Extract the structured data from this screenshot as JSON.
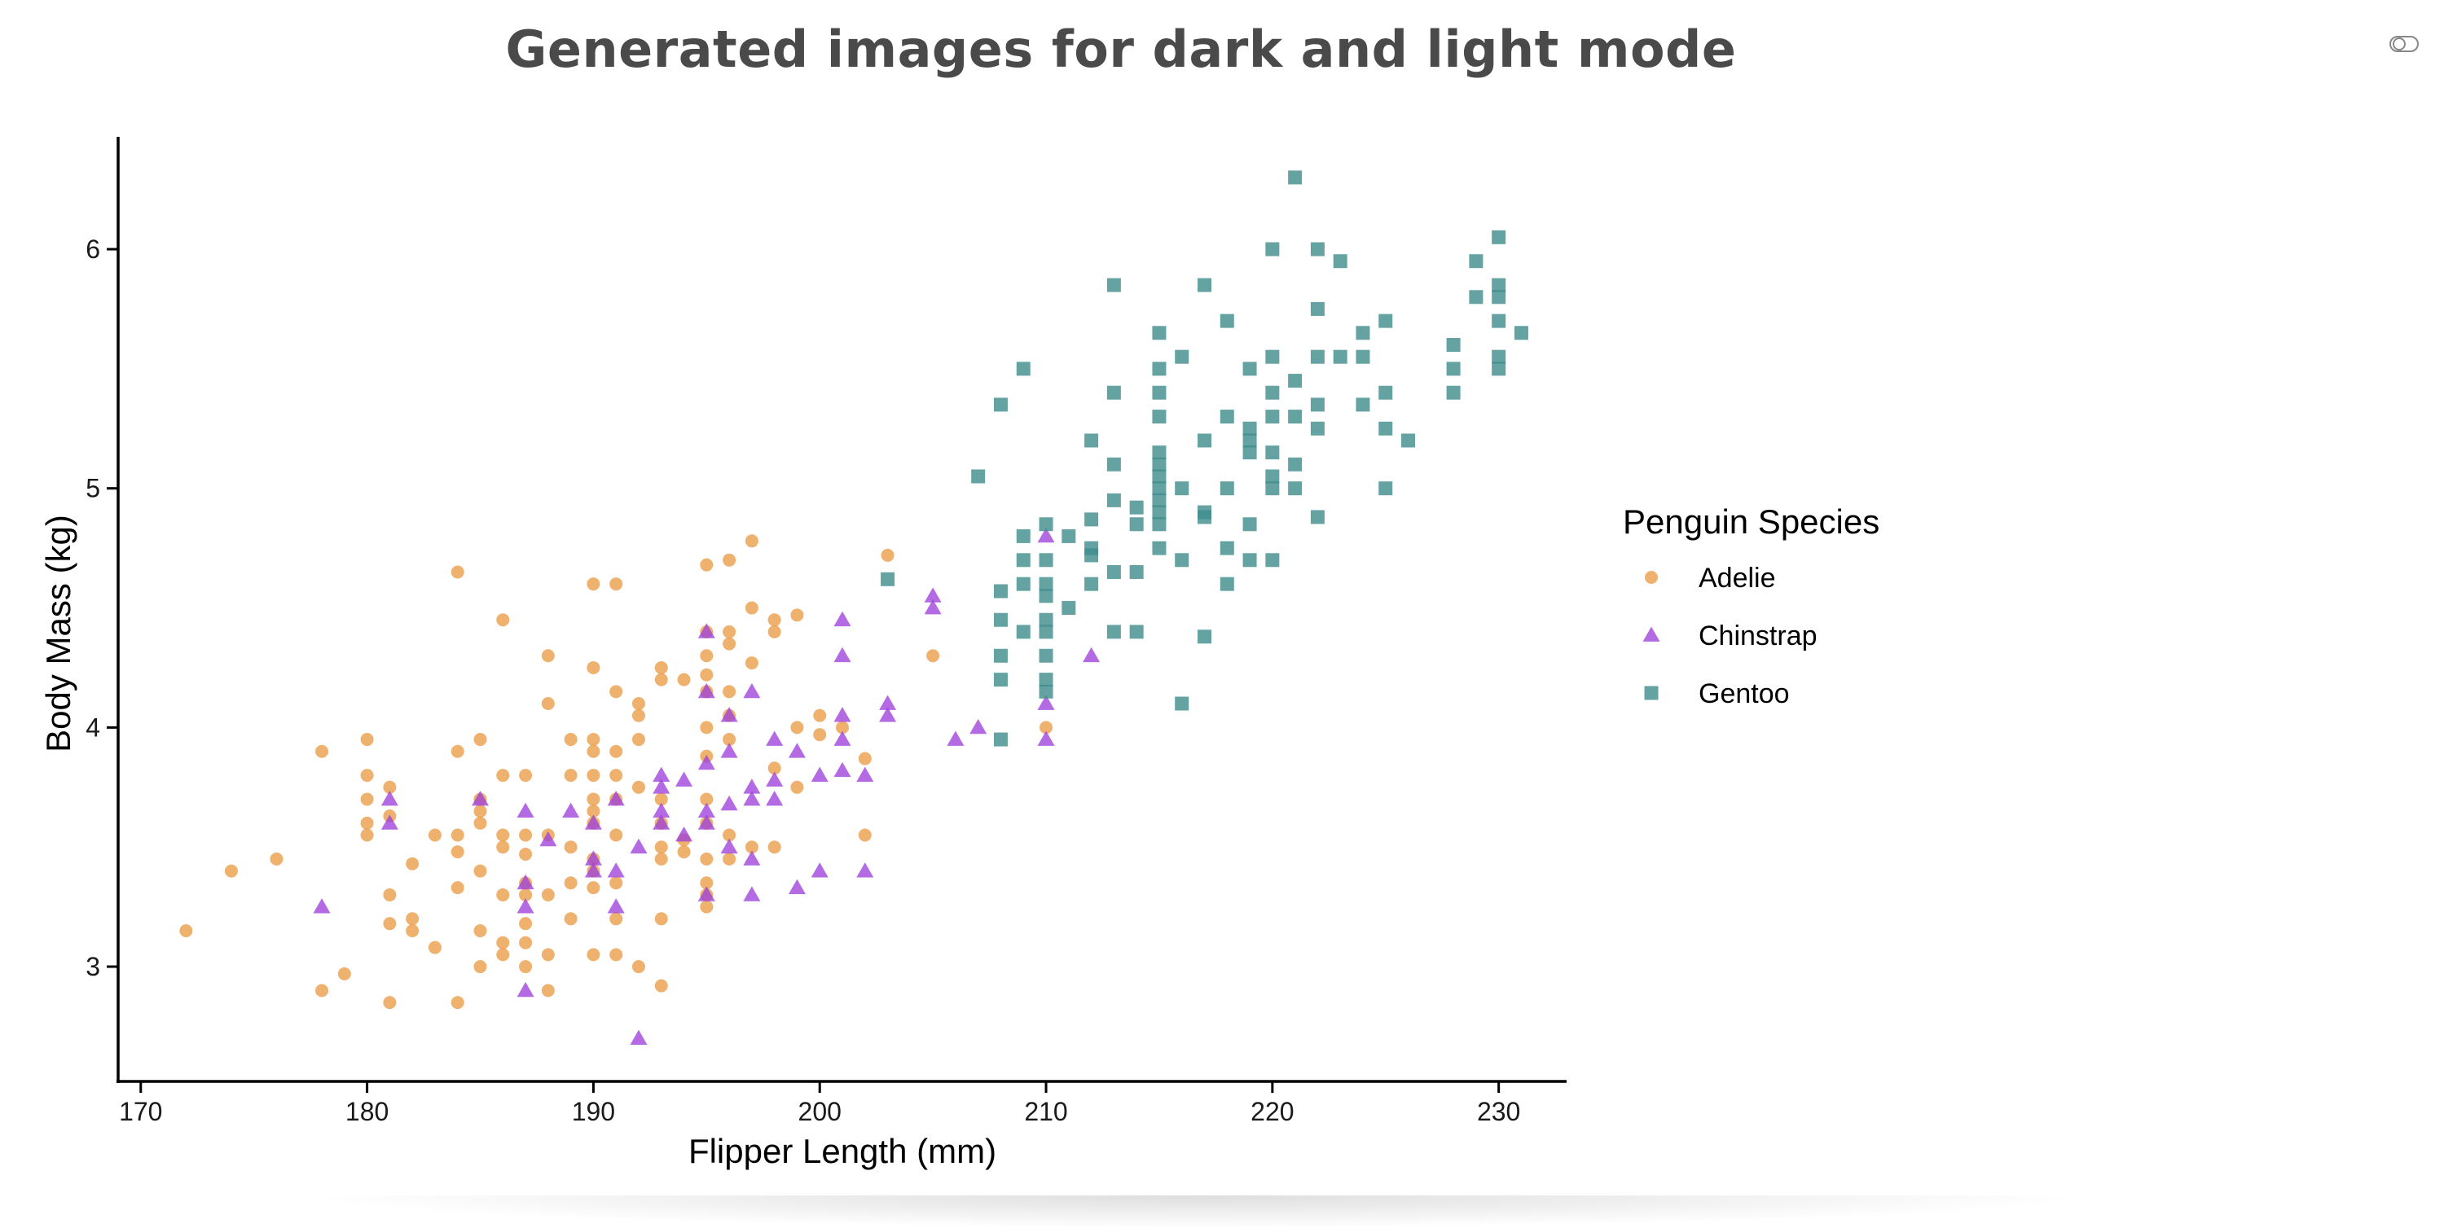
{
  "page": {
    "title": "Generated images for dark and light mode",
    "toggle_icon": "dark-light-toggle-icon"
  },
  "colors": {
    "Adelie": "#eb9b45",
    "Chinstrap": "#9d40db",
    "Gentoo": "#3f8c8c",
    "title": "#4a4a4a",
    "axis": "#000000"
  },
  "chart_data": {
    "type": "scatter",
    "xlabel": "Flipper Length (mm)",
    "ylabel": "Body Mass (kg)",
    "xlim": [
      169,
      233
    ],
    "ylim": [
      2.52,
      6.47
    ],
    "xticks": [
      170,
      180,
      190,
      200,
      210,
      220,
      230
    ],
    "yticks": [
      3,
      4,
      5,
      6
    ],
    "grid": false,
    "legend": {
      "title": "Penguin Species",
      "placement": "right"
    },
    "series": [
      {
        "name": "Adelie",
        "marker": "circle",
        "points": [
          [
            172,
            3.15
          ],
          [
            174,
            3.4
          ],
          [
            176,
            3.45
          ],
          [
            178,
            3.9
          ],
          [
            178,
            2.9
          ],
          [
            179,
            2.97
          ],
          [
            180,
            3.95
          ],
          [
            180,
            3.8
          ],
          [
            180,
            3.7
          ],
          [
            180,
            3.6
          ],
          [
            180,
            3.55
          ],
          [
            181,
            3.75
          ],
          [
            181,
            3.63
          ],
          [
            181,
            3.3
          ],
          [
            181,
            3.18
          ],
          [
            181,
            2.85
          ],
          [
            182,
            3.43
          ],
          [
            182,
            3.2
          ],
          [
            182,
            3.15
          ],
          [
            183,
            3.55
          ],
          [
            183,
            3.08
          ],
          [
            184,
            4.65
          ],
          [
            184,
            3.9
          ],
          [
            184,
            3.55
          ],
          [
            184,
            3.48
          ],
          [
            184,
            3.33
          ],
          [
            184,
            2.85
          ],
          [
            185,
            3.95
          ],
          [
            185,
            3.7
          ],
          [
            185,
            3.65
          ],
          [
            185,
            3.6
          ],
          [
            185,
            3.4
          ],
          [
            185,
            3.15
          ],
          [
            185,
            3.0
          ],
          [
            186,
            4.45
          ],
          [
            186,
            3.8
          ],
          [
            186,
            3.55
          ],
          [
            186,
            3.5
          ],
          [
            186,
            3.3
          ],
          [
            186,
            3.1
          ],
          [
            186,
            3.05
          ],
          [
            187,
            3.8
          ],
          [
            187,
            3.55
          ],
          [
            187,
            3.47
          ],
          [
            187,
            3.35
          ],
          [
            187,
            3.3
          ],
          [
            187,
            3.18
          ],
          [
            187,
            3.1
          ],
          [
            187,
            3.0
          ],
          [
            188,
            4.3
          ],
          [
            188,
            4.1
          ],
          [
            188,
            3.55
          ],
          [
            188,
            3.3
          ],
          [
            188,
            3.05
          ],
          [
            188,
            2.9
          ],
          [
            189,
            3.95
          ],
          [
            189,
            3.8
          ],
          [
            189,
            3.5
          ],
          [
            189,
            3.35
          ],
          [
            189,
            3.2
          ],
          [
            190,
            4.6
          ],
          [
            190,
            4.25
          ],
          [
            190,
            3.95
          ],
          [
            190,
            3.9
          ],
          [
            190,
            3.8
          ],
          [
            190,
            3.7
          ],
          [
            190,
            3.65
          ],
          [
            190,
            3.6
          ],
          [
            190,
            3.45
          ],
          [
            190,
            3.4
          ],
          [
            190,
            3.33
          ],
          [
            190,
            3.05
          ],
          [
            191,
            4.6
          ],
          [
            191,
            4.15
          ],
          [
            191,
            3.9
          ],
          [
            191,
            3.8
          ],
          [
            191,
            3.7
          ],
          [
            191,
            3.55
          ],
          [
            191,
            3.35
          ],
          [
            191,
            3.2
          ],
          [
            191,
            3.05
          ],
          [
            192,
            4.1
          ],
          [
            192,
            4.05
          ],
          [
            192,
            3.95
          ],
          [
            192,
            3.75
          ],
          [
            192,
            3.0
          ],
          [
            193,
            4.25
          ],
          [
            193,
            4.2
          ],
          [
            193,
            3.7
          ],
          [
            193,
            3.6
          ],
          [
            193,
            3.5
          ],
          [
            193,
            3.45
          ],
          [
            193,
            3.2
          ],
          [
            193,
            2.92
          ],
          [
            194,
            4.2
          ],
          [
            194,
            3.53
          ],
          [
            194,
            3.48
          ],
          [
            195,
            4.68
          ],
          [
            195,
            4.4
          ],
          [
            195,
            4.3
          ],
          [
            195,
            4.22
          ],
          [
            195,
            4.15
          ],
          [
            195,
            4.0
          ],
          [
            195,
            3.88
          ],
          [
            195,
            3.7
          ],
          [
            195,
            3.6
          ],
          [
            195,
            3.45
          ],
          [
            195,
            3.35
          ],
          [
            195,
            3.3
          ],
          [
            195,
            3.25
          ],
          [
            196,
            4.7
          ],
          [
            196,
            4.4
          ],
          [
            196,
            4.35
          ],
          [
            196,
            4.15
          ],
          [
            196,
            4.05
          ],
          [
            196,
            3.95
          ],
          [
            196,
            3.55
          ],
          [
            196,
            3.45
          ],
          [
            197,
            4.78
          ],
          [
            197,
            4.5
          ],
          [
            197,
            4.27
          ],
          [
            197,
            3.5
          ],
          [
            198,
            4.45
          ],
          [
            198,
            4.4
          ],
          [
            198,
            3.83
          ],
          [
            198,
            3.5
          ],
          [
            199,
            4.47
          ],
          [
            199,
            4.0
          ],
          [
            199,
            3.75
          ],
          [
            200,
            4.05
          ],
          [
            200,
            3.97
          ],
          [
            201,
            4.0
          ],
          [
            202,
            3.87
          ],
          [
            202,
            3.55
          ],
          [
            203,
            4.72
          ],
          [
            205,
            4.3
          ],
          [
            210,
            4.0
          ]
        ]
      },
      {
        "name": "Chinstrap",
        "marker": "triangle",
        "points": [
          [
            178,
            3.25
          ],
          [
            181,
            3.7
          ],
          [
            181,
            3.6
          ],
          [
            185,
            3.7
          ],
          [
            187,
            3.65
          ],
          [
            187,
            3.35
          ],
          [
            187,
            3.25
          ],
          [
            187,
            2.9
          ],
          [
            188,
            3.53
          ],
          [
            189,
            3.65
          ],
          [
            190,
            3.6
          ],
          [
            190,
            3.45
          ],
          [
            190,
            3.4
          ],
          [
            191,
            3.7
          ],
          [
            191,
            3.4
          ],
          [
            191,
            3.25
          ],
          [
            192,
            3.5
          ],
          [
            192,
            2.7
          ],
          [
            193,
            3.8
          ],
          [
            193,
            3.75
          ],
          [
            193,
            3.65
          ],
          [
            193,
            3.6
          ],
          [
            194,
            3.78
          ],
          [
            194,
            3.55
          ],
          [
            195,
            4.4
          ],
          [
            195,
            4.15
          ],
          [
            195,
            3.85
          ],
          [
            195,
            3.65
          ],
          [
            195,
            3.6
          ],
          [
            195,
            3.3
          ],
          [
            196,
            4.05
          ],
          [
            196,
            3.9
          ],
          [
            196,
            3.68
          ],
          [
            196,
            3.5
          ],
          [
            197,
            4.15
          ],
          [
            197,
            3.75
          ],
          [
            197,
            3.7
          ],
          [
            197,
            3.45
          ],
          [
            197,
            3.3
          ],
          [
            198,
            3.95
          ],
          [
            198,
            3.78
          ],
          [
            198,
            3.7
          ],
          [
            199,
            3.9
          ],
          [
            199,
            3.33
          ],
          [
            200,
            3.8
          ],
          [
            200,
            3.4
          ],
          [
            201,
            4.45
          ],
          [
            201,
            4.3
          ],
          [
            201,
            4.05
          ],
          [
            201,
            3.95
          ],
          [
            201,
            3.82
          ],
          [
            202,
            3.8
          ],
          [
            202,
            3.4
          ],
          [
            203,
            4.1
          ],
          [
            203,
            4.05
          ],
          [
            205,
            4.55
          ],
          [
            205,
            4.5
          ],
          [
            206,
            3.95
          ],
          [
            207,
            4.0
          ],
          [
            210,
            4.8
          ],
          [
            210,
            4.1
          ],
          [
            210,
            3.95
          ],
          [
            212,
            4.3
          ]
        ]
      },
      {
        "name": "Gentoo",
        "marker": "square",
        "points": [
          [
            203,
            4.62
          ],
          [
            207,
            5.05
          ],
          [
            208,
            5.35
          ],
          [
            208,
            4.57
          ],
          [
            208,
            4.45
          ],
          [
            208,
            4.3
          ],
          [
            208,
            4.2
          ],
          [
            208,
            3.95
          ],
          [
            209,
            5.5
          ],
          [
            209,
            4.8
          ],
          [
            209,
            4.7
          ],
          [
            209,
            4.6
          ],
          [
            209,
            4.4
          ],
          [
            210,
            4.85
          ],
          [
            210,
            4.7
          ],
          [
            210,
            4.6
          ],
          [
            210,
            4.55
          ],
          [
            210,
            4.45
          ],
          [
            210,
            4.4
          ],
          [
            210,
            4.3
          ],
          [
            210,
            4.2
          ],
          [
            210,
            4.15
          ],
          [
            211,
            4.8
          ],
          [
            211,
            4.5
          ],
          [
            212,
            5.2
          ],
          [
            212,
            4.87
          ],
          [
            212,
            4.75
          ],
          [
            212,
            4.72
          ],
          [
            212,
            4.6
          ],
          [
            213,
            5.85
          ],
          [
            213,
            5.4
          ],
          [
            213,
            5.1
          ],
          [
            213,
            4.95
          ],
          [
            213,
            4.65
          ],
          [
            213,
            4.4
          ],
          [
            214,
            4.92
          ],
          [
            214,
            4.85
          ],
          [
            214,
            4.65
          ],
          [
            214,
            4.4
          ],
          [
            215,
            5.65
          ],
          [
            215,
            5.5
          ],
          [
            215,
            5.4
          ],
          [
            215,
            5.3
          ],
          [
            215,
            5.15
          ],
          [
            215,
            5.1
          ],
          [
            215,
            5.05
          ],
          [
            215,
            5.0
          ],
          [
            215,
            4.95
          ],
          [
            215,
            4.9
          ],
          [
            215,
            4.85
          ],
          [
            215,
            4.75
          ],
          [
            216,
            5.55
          ],
          [
            216,
            5.0
          ],
          [
            216,
            4.7
          ],
          [
            216,
            4.1
          ],
          [
            217,
            5.85
          ],
          [
            217,
            5.2
          ],
          [
            217,
            4.9
          ],
          [
            217,
            4.88
          ],
          [
            217,
            4.38
          ],
          [
            218,
            5.7
          ],
          [
            218,
            5.3
          ],
          [
            218,
            5.0
          ],
          [
            218,
            4.75
          ],
          [
            218,
            4.6
          ],
          [
            219,
            5.5
          ],
          [
            219,
            5.25
          ],
          [
            219,
            5.2
          ],
          [
            219,
            5.15
          ],
          [
            219,
            4.85
          ],
          [
            219,
            4.7
          ],
          [
            220,
            6.0
          ],
          [
            220,
            5.55
          ],
          [
            220,
            5.4
          ],
          [
            220,
            5.3
          ],
          [
            220,
            5.15
          ],
          [
            220,
            5.05
          ],
          [
            220,
            5.0
          ],
          [
            220,
            4.7
          ],
          [
            221,
            6.3
          ],
          [
            221,
            5.45
          ],
          [
            221,
            5.3
          ],
          [
            221,
            5.1
          ],
          [
            221,
            5.0
          ],
          [
            222,
            6.0
          ],
          [
            222,
            5.75
          ],
          [
            222,
            5.55
          ],
          [
            222,
            5.35
          ],
          [
            222,
            5.25
          ],
          [
            222,
            4.88
          ],
          [
            223,
            5.95
          ],
          [
            223,
            5.55
          ],
          [
            224,
            5.65
          ],
          [
            224,
            5.55
          ],
          [
            224,
            5.35
          ],
          [
            225,
            5.7
          ],
          [
            225,
            5.4
          ],
          [
            225,
            5.25
          ],
          [
            225,
            5.0
          ],
          [
            226,
            5.2
          ],
          [
            228,
            5.6
          ],
          [
            228,
            5.5
          ],
          [
            228,
            5.4
          ],
          [
            229,
            5.95
          ],
          [
            229,
            5.8
          ],
          [
            230,
            6.05
          ],
          [
            230,
            5.85
          ],
          [
            230,
            5.8
          ],
          [
            230,
            5.7
          ],
          [
            230,
            5.55
          ],
          [
            230,
            5.5
          ],
          [
            231,
            5.65
          ]
        ]
      }
    ]
  }
}
